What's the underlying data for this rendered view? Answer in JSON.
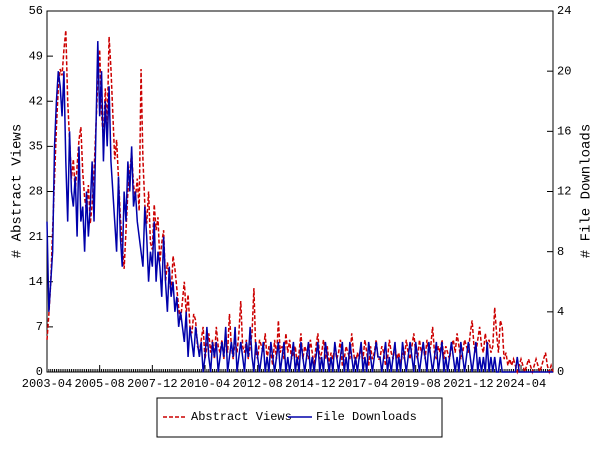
{
  "chart_data": {
    "type": "line",
    "y_label": "# Abstract Views",
    "y2_label": "# File Downloads",
    "x": [
      "2003-04",
      "2003-05",
      "2003-06",
      "2003-07",
      "2003-08",
      "2003-09",
      "2003-10",
      "2003-11",
      "2003-12",
      "2004-01",
      "2004-02",
      "2004-03",
      "2004-04",
      "2004-05",
      "2004-06",
      "2004-07",
      "2004-08",
      "2004-09",
      "2004-10",
      "2004-11",
      "2004-12",
      "2005-01",
      "2005-02",
      "2005-03",
      "2005-04",
      "2005-05",
      "2005-06",
      "2005-07",
      "2005-08",
      "2005-09",
      "2005-10",
      "2005-11",
      "2005-12",
      "2006-01",
      "2006-02",
      "2006-03",
      "2006-04",
      "2006-05",
      "2006-06",
      "2006-07",
      "2006-08",
      "2006-09",
      "2006-10",
      "2006-11",
      "2006-12",
      "2007-01",
      "2007-02",
      "2007-03",
      "2007-04",
      "2007-05",
      "2007-06",
      "2007-07",
      "2007-08",
      "2007-09",
      "2007-10",
      "2007-11",
      "2007-12",
      "2008-01",
      "2008-02",
      "2008-03",
      "2008-04",
      "2008-05",
      "2008-06",
      "2008-07",
      "2008-08",
      "2008-09",
      "2008-10",
      "2008-11",
      "2008-12",
      "2009-01",
      "2009-02",
      "2009-03",
      "2009-04",
      "2009-05",
      "2009-06",
      "2009-07",
      "2009-08",
      "2009-09",
      "2009-10",
      "2009-11",
      "2009-12",
      "2010-01",
      "2010-02",
      "2010-03",
      "2010-04",
      "2010-05",
      "2010-06",
      "2010-07",
      "2010-08",
      "2010-09",
      "2010-10",
      "2010-11",
      "2010-12",
      "2011-01",
      "2011-02",
      "2011-03",
      "2011-04",
      "2011-05",
      "2011-06",
      "2011-07",
      "2011-08",
      "2011-09",
      "2011-10",
      "2011-11",
      "2011-12",
      "2012-01",
      "2012-02",
      "2012-03",
      "2012-04",
      "2012-05",
      "2012-06",
      "2012-07",
      "2012-08",
      "2012-09",
      "2012-10",
      "2012-11",
      "2012-12",
      "2013-01",
      "2013-02",
      "2013-03",
      "2013-04",
      "2013-05",
      "2013-06",
      "2013-07",
      "2013-08",
      "2013-09",
      "2013-10",
      "2013-11",
      "2013-12",
      "2014-01",
      "2014-02",
      "2014-03",
      "2014-04",
      "2014-05",
      "2014-06",
      "2014-07",
      "2014-08",
      "2014-09",
      "2014-10",
      "2014-11",
      "2014-12",
      "2015-01",
      "2015-02",
      "2015-03",
      "2015-04",
      "2015-05",
      "2015-06",
      "2015-07",
      "2015-08",
      "2015-09",
      "2015-10",
      "2015-11",
      "2015-12",
      "2016-01",
      "2016-02",
      "2016-03",
      "2016-04",
      "2016-05",
      "2016-06",
      "2016-07",
      "2016-08",
      "2016-09",
      "2016-10",
      "2016-11",
      "2016-12",
      "2017-01",
      "2017-02",
      "2017-03",
      "2017-04",
      "2017-05",
      "2017-06",
      "2017-07",
      "2017-08",
      "2017-09",
      "2017-10",
      "2017-11",
      "2017-12",
      "2018-01",
      "2018-02",
      "2018-03",
      "2018-04",
      "2018-05",
      "2018-06",
      "2018-07",
      "2018-08",
      "2018-09",
      "2018-10",
      "2018-11",
      "2018-12",
      "2019-01",
      "2019-02",
      "2019-03",
      "2019-04",
      "2019-05",
      "2019-06",
      "2019-07",
      "2019-08",
      "2019-09",
      "2019-10",
      "2019-11",
      "2019-12",
      "2020-01",
      "2020-02",
      "2020-03",
      "2020-04",
      "2020-05",
      "2020-06",
      "2020-07",
      "2020-08",
      "2020-09",
      "2020-10",
      "2020-11",
      "2020-12",
      "2021-01",
      "2021-02",
      "2021-03",
      "2021-04",
      "2021-05",
      "2021-06",
      "2021-07",
      "2021-08",
      "2021-09",
      "2021-10",
      "2021-11",
      "2021-12",
      "2022-01",
      "2022-02",
      "2022-03",
      "2022-04",
      "2022-05",
      "2022-06",
      "2022-07",
      "2022-08",
      "2022-09",
      "2022-10",
      "2022-11",
      "2022-12",
      "2023-01",
      "2023-02",
      "2023-03",
      "2023-04",
      "2023-05",
      "2023-06",
      "2023-07",
      "2023-08",
      "2023-09",
      "2023-10",
      "2023-11",
      "2023-12",
      "2024-01",
      "2024-02",
      "2024-03",
      "2024-04",
      "2024-05",
      "2024-06",
      "2024-07",
      "2024-08",
      "2024-09",
      "2024-10",
      "2024-11",
      "2024-12",
      "2025-01",
      "2025-02",
      "2025-03",
      "2025-04",
      "2025-05",
      "2025-06",
      "2025-07",
      "2025-08",
      "2025-09"
    ],
    "xticks": [
      "2003-04",
      "2005-08",
      "2007-12",
      "2010-04",
      "2012-08",
      "2014-12",
      "2017-04",
      "2019-08",
      "2021-12",
      "2024-04"
    ],
    "ylim": [
      0,
      56
    ],
    "yticks": [
      0,
      7,
      14,
      21,
      28,
      35,
      42,
      49,
      56
    ],
    "y2lim": [
      0,
      24
    ],
    "y2ticks": [
      0,
      4,
      8,
      12,
      16,
      20,
      24
    ],
    "series": [
      {
        "name": "Abstract Views",
        "color": "#cc0000",
        "line_style": "dashed",
        "values": [
          5,
          9,
          14,
          22,
          30,
          38,
          44,
          47,
          46,
          50,
          53,
          42,
          36,
          30,
          33,
          28,
          32,
          36,
          38,
          31,
          27,
          25,
          29,
          23,
          26,
          31,
          38,
          45,
          50,
          40,
          36,
          44,
          38,
          52,
          47,
          40,
          33,
          36,
          30,
          24,
          20,
          16,
          22,
          28,
          31,
          34,
          29,
          27,
          30,
          25,
          47,
          33,
          26,
          23,
          28,
          20,
          19,
          26,
          22,
          24,
          17,
          20,
          22,
          14,
          17,
          15,
          12,
          18,
          16,
          13,
          10,
          8,
          11,
          14,
          9,
          12,
          7,
          6,
          9,
          8,
          4,
          3,
          5,
          7,
          2,
          4,
          6,
          3,
          5,
          2,
          7,
          4,
          3,
          5,
          2,
          6,
          3,
          9,
          4,
          2,
          5,
          3,
          6,
          11,
          4,
          3,
          5,
          2,
          4,
          6,
          13,
          3,
          2,
          5,
          4,
          3,
          6,
          2,
          4,
          3,
          1,
          5,
          2,
          8,
          3,
          4,
          2,
          6,
          3,
          5,
          2,
          3,
          4,
          1,
          3,
          6,
          2,
          4,
          3,
          2,
          5,
          3,
          1,
          4,
          6,
          2,
          3,
          5,
          2,
          4,
          1,
          3,
          2,
          4,
          2,
          3,
          5,
          1,
          2,
          4,
          3,
          2,
          6,
          3,
          1,
          3,
          2,
          4,
          2,
          5,
          3,
          1,
          4,
          2,
          3,
          5,
          2,
          2,
          4,
          3,
          1,
          2,
          5,
          3,
          2,
          4,
          2,
          3,
          1,
          3,
          2,
          5,
          3,
          2,
          4,
          6,
          3,
          2,
          5,
          3,
          4,
          2,
          5,
          3,
          4,
          7,
          3,
          2,
          4,
          3,
          5,
          2,
          4,
          3,
          2,
          4,
          5,
          3,
          6,
          4,
          2,
          3,
          5,
          4,
          3,
          6,
          8,
          4,
          3,
          5,
          7,
          4,
          3,
          6,
          4,
          5,
          3,
          4,
          10,
          6,
          3,
          8,
          7,
          2,
          3,
          1,
          2,
          1,
          2,
          1,
          0,
          1,
          2,
          1,
          0,
          1,
          2,
          1,
          0,
          1,
          2,
          1,
          0,
          1,
          2,
          3,
          1,
          0,
          1,
          0
        ]
      },
      {
        "name": "File Downloads",
        "color": "#0000aa",
        "line_style": "solid",
        "axis": "y2",
        "values": [
          10,
          4,
          6,
          8,
          15,
          18,
          20,
          19,
          17,
          20,
          14,
          10,
          16,
          12,
          11,
          13,
          9,
          15,
          10,
          11,
          8,
          12,
          9,
          11,
          14,
          10,
          16,
          22,
          17,
          20,
          14,
          18,
          15,
          19,
          14,
          12,
          10,
          8,
          13,
          9,
          7,
          12,
          10,
          14,
          12,
          15,
          11,
          12,
          10,
          9,
          8,
          7,
          11,
          9,
          6,
          8,
          7,
          10,
          6,
          8,
          7,
          5,
          9,
          6,
          4,
          7,
          5,
          6,
          4,
          5,
          3,
          4,
          3,
          2,
          4,
          1,
          3,
          2,
          1,
          3,
          2,
          1,
          2,
          0,
          1,
          3,
          1,
          0,
          2,
          1,
          2,
          0,
          1,
          2,
          1,
          3,
          0,
          1,
          2,
          1,
          3,
          0,
          1,
          2,
          1,
          0,
          2,
          1,
          3,
          1,
          0,
          2,
          1,
          0,
          1,
          2,
          0,
          1,
          0,
          2,
          1,
          0,
          1,
          2,
          0,
          1,
          2,
          0,
          1,
          0,
          1,
          2,
          0,
          1,
          0,
          2,
          1,
          0,
          1,
          2,
          0,
          1,
          0,
          1,
          2,
          0,
          1,
          0,
          2,
          1,
          0,
          1,
          0,
          2,
          1,
          0,
          1,
          2,
          0,
          1,
          0,
          2,
          1,
          0,
          1,
          0,
          1,
          2,
          0,
          1,
          0,
          2,
          1,
          0,
          1,
          2,
          1,
          1,
          0,
          1,
          2,
          0,
          1,
          0,
          1,
          2,
          0,
          1,
          0,
          2,
          1,
          0,
          1,
          2,
          1,
          0,
          2,
          1,
          0,
          1,
          2,
          1,
          0,
          2,
          1,
          0,
          1,
          2,
          0,
          1,
          2,
          0,
          1,
          0,
          1,
          2,
          1,
          0,
          1,
          0,
          2,
          1,
          0,
          1,
          2,
          1,
          0,
          1,
          2,
          0,
          1,
          0,
          1,
          0,
          2,
          0,
          1,
          0,
          1,
          0,
          0,
          1,
          0,
          0,
          0,
          0,
          0,
          0,
          0,
          0,
          1,
          0,
          0,
          0,
          0,
          0,
          0,
          0,
          0,
          0,
          0,
          0,
          0,
          0,
          0,
          0,
          0,
          0,
          0,
          0
        ]
      }
    ]
  }
}
